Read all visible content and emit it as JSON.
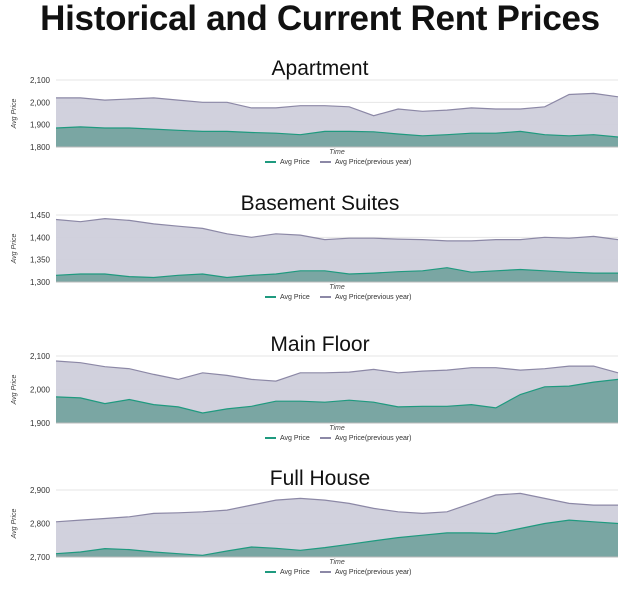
{
  "page_title": "Historical and Current Rent Prices",
  "colors": {
    "current_fill": "#7aa6a3",
    "current_line": "#1f9a7f",
    "previous_fill": "#cfcfdb",
    "previous_line": "#8c88a6",
    "grid": "#e6e6e6"
  },
  "chart_data": [
    {
      "type": "area",
      "title": "Apartment",
      "xlabel": "Time",
      "ylabel": "Avg Price",
      "yticks": [
        "1,800",
        "1,900",
        "2,000",
        "2,100"
      ],
      "ylim": [
        1800,
        2100
      ],
      "grid": true,
      "legend": "bottom-center",
      "series": [
        {
          "name": "Avg Price",
          "values": [
            1885,
            1890,
            1885,
            1885,
            1880,
            1875,
            1870,
            1870,
            1865,
            1862,
            1855,
            1870,
            1870,
            1868,
            1858,
            1850,
            1855,
            1862,
            1862,
            1870,
            1855,
            1850,
            1855,
            1845
          ]
        },
        {
          "name": "Avg Price(previous year)",
          "values": [
            2020,
            2020,
            2010,
            2015,
            2020,
            2010,
            2000,
            2000,
            1975,
            1975,
            1985,
            1985,
            1980,
            1940,
            1970,
            1960,
            1965,
            1975,
            1970,
            1970,
            1980,
            2035,
            2040,
            2025
          ]
        }
      ]
    },
    {
      "type": "area",
      "title": "Basement Suites",
      "xlabel": "Time",
      "ylabel": "Avg Price",
      "yticks": [
        "1,300",
        "1,350",
        "1,400",
        "1,450"
      ],
      "ylim": [
        1300,
        1450
      ],
      "grid": true,
      "legend": "bottom-center",
      "series": [
        {
          "name": "Avg Price",
          "values": [
            1315,
            1318,
            1318,
            1312,
            1310,
            1315,
            1318,
            1310,
            1315,
            1318,
            1325,
            1325,
            1318,
            1320,
            1323,
            1325,
            1332,
            1322,
            1325,
            1328,
            1325,
            1322,
            1320,
            1320
          ]
        },
        {
          "name": "Avg Price(previous year)",
          "values": [
            1440,
            1435,
            1442,
            1438,
            1430,
            1425,
            1420,
            1408,
            1400,
            1408,
            1405,
            1395,
            1398,
            1398,
            1396,
            1395,
            1392,
            1392,
            1395,
            1395,
            1400,
            1398,
            1402,
            1395
          ]
        }
      ]
    },
    {
      "type": "area",
      "title": "Main Floor",
      "xlabel": "Time",
      "ylabel": "Avg Price",
      "yticks": [
        "1,900",
        "2,000",
        "2,100"
      ],
      "ylim": [
        1900,
        2100
      ],
      "grid": true,
      "legend": "bottom-center",
      "series": [
        {
          "name": "Avg Price",
          "values": [
            1978,
            1975,
            1958,
            1970,
            1955,
            1948,
            1930,
            1942,
            1950,
            1965,
            1965,
            1962,
            1968,
            1962,
            1948,
            1950,
            1950,
            1955,
            1945,
            1985,
            2008,
            2010,
            2022,
            2030
          ]
        },
        {
          "name": "Avg Price(previous year)",
          "values": [
            2085,
            2080,
            2068,
            2062,
            2045,
            2030,
            2050,
            2042,
            2030,
            2025,
            2050,
            2050,
            2052,
            2060,
            2050,
            2055,
            2058,
            2065,
            2065,
            2058,
            2062,
            2070,
            2070,
            2050
          ]
        }
      ]
    },
    {
      "type": "area",
      "title": "Full House",
      "xlabel": "Time",
      "ylabel": "Avg Price",
      "yticks": [
        "2,700",
        "2,800",
        "2,900"
      ],
      "ylim": [
        2700,
        2900
      ],
      "grid": true,
      "legend": "bottom-center",
      "series": [
        {
          "name": "Avg Price",
          "values": [
            2710,
            2715,
            2725,
            2722,
            2715,
            2710,
            2705,
            2718,
            2730,
            2726,
            2720,
            2728,
            2738,
            2748,
            2758,
            2765,
            2772,
            2772,
            2770,
            2785,
            2800,
            2810,
            2805,
            2800
          ]
        },
        {
          "name": "Avg Price(previous year)",
          "values": [
            2805,
            2810,
            2815,
            2820,
            2830,
            2832,
            2835,
            2840,
            2855,
            2870,
            2875,
            2870,
            2860,
            2845,
            2835,
            2830,
            2835,
            2860,
            2885,
            2890,
            2875,
            2860,
            2855,
            2855
          ]
        }
      ]
    }
  ]
}
